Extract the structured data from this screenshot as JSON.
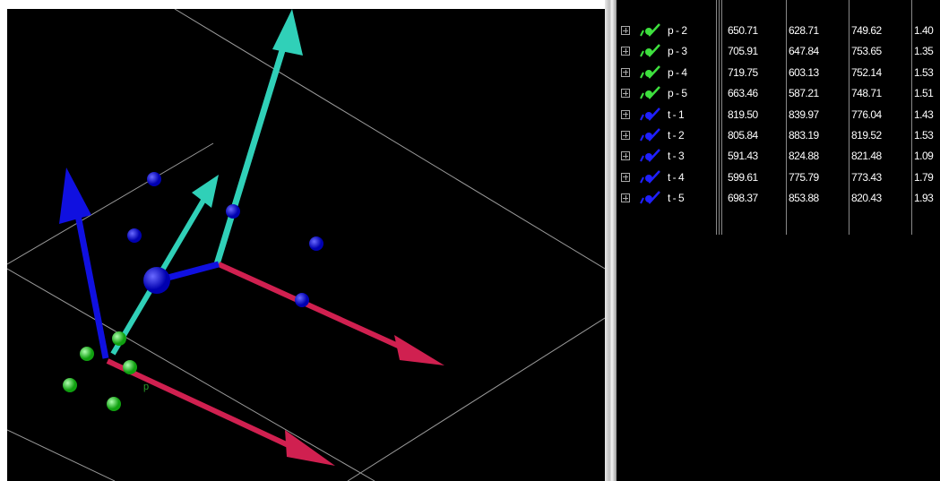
{
  "scene": {
    "labels": [
      "p"
    ]
  },
  "table": {
    "rows": [
      {
        "name": "p - 2",
        "color": "#3ee03e",
        "cells": [
          "650.71",
          "628.71",
          "749.62",
          "1.40"
        ]
      },
      {
        "name": "p - 3",
        "color": "#3ee03e",
        "cells": [
          "705.91",
          "647.84",
          "753.65",
          "1.35"
        ]
      },
      {
        "name": "p - 4",
        "color": "#3ee03e",
        "cells": [
          "719.75",
          "603.13",
          "752.14",
          "1.53"
        ]
      },
      {
        "name": "p - 5",
        "color": "#3ee03e",
        "cells": [
          "663.46",
          "587.21",
          "748.71",
          "1.51"
        ]
      },
      {
        "name": "t - 1",
        "color": "#2020ff",
        "cells": [
          "819.50",
          "839.97",
          "776.04",
          "1.43"
        ]
      },
      {
        "name": "t - 2",
        "color": "#2020ff",
        "cells": [
          "805.84",
          "883.19",
          "819.52",
          "1.53"
        ]
      },
      {
        "name": "t - 3",
        "color": "#2020ff",
        "cells": [
          "591.43",
          "824.88",
          "821.48",
          "1.09"
        ]
      },
      {
        "name": "t - 4",
        "color": "#2020ff",
        "cells": [
          "599.61",
          "775.79",
          "773.43",
          "1.79"
        ]
      },
      {
        "name": "t - 5",
        "color": "#2020ff",
        "cells": [
          "698.37",
          "853.88",
          "820.43",
          "1.93"
        ]
      }
    ]
  }
}
